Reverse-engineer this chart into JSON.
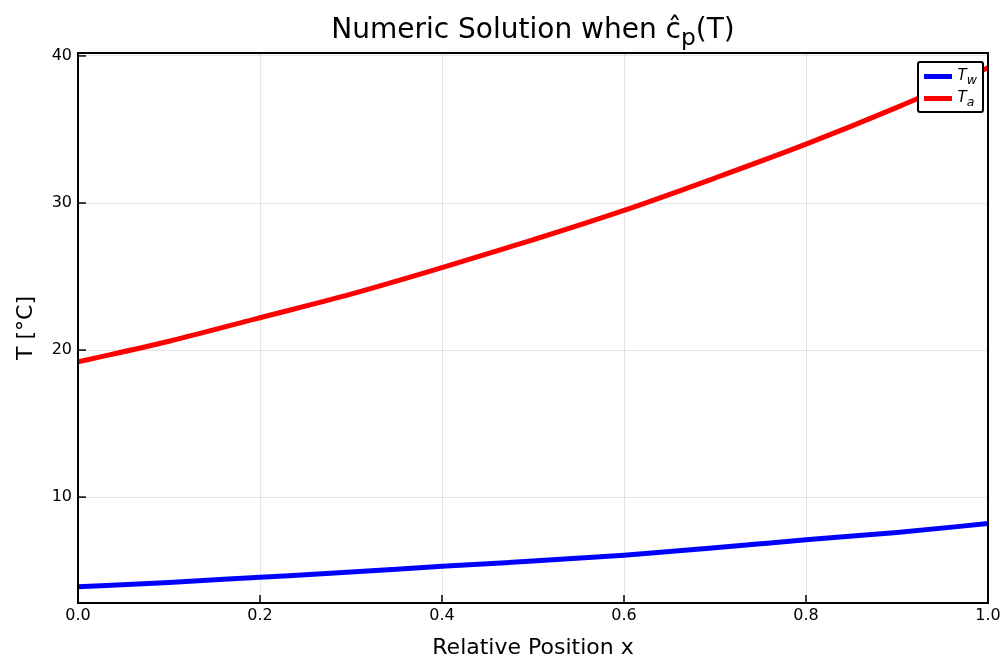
{
  "chart_data": {
    "type": "line",
    "title": "Numeric Solution when ĉ$_{p}$(T)",
    "xlabel": "Relative Position x",
    "ylabel": "T [°C]",
    "x": [
      0,
      0.1,
      0.2,
      0.3,
      0.4,
      0.5,
      0.6,
      0.7,
      0.8,
      0.9,
      1.0
    ],
    "series": [
      {
        "name": "T$_{w}$",
        "color": "#0000ff",
        "values": [
          3.9,
          4.2,
          4.55,
          4.9,
          5.3,
          5.65,
          6.05,
          6.55,
          7.1,
          7.6,
          8.2
        ]
      },
      {
        "name": "T$_{a}$",
        "color": "#ff0000",
        "values": [
          19.2,
          20.6,
          22.2,
          23.8,
          25.6,
          27.5,
          29.5,
          31.7,
          34.0,
          36.5,
          39.2
        ]
      }
    ],
    "xlim": [
      0,
      1
    ],
    "xticks": [
      {
        "value": 0,
        "label": "0.0"
      },
      0.2,
      0.4,
      0.6,
      0.8,
      {
        "value": 1,
        "label": "1.0"
      }
    ],
    "ylim": [
      2.8,
      40.2
    ],
    "yticks": [
      10,
      20,
      30,
      40
    ],
    "grid": true,
    "legend": "top right",
    "marker": "none",
    "line_style": "solid"
  }
}
